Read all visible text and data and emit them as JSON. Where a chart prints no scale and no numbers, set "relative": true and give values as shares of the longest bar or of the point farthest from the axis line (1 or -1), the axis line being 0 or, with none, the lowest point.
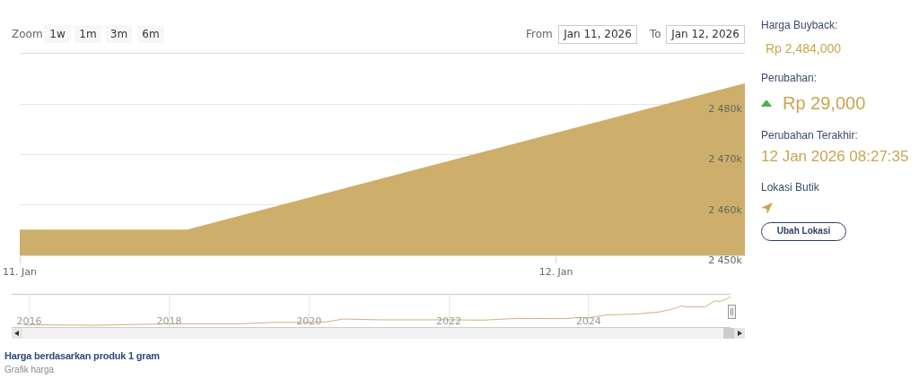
{
  "chart_data": [
    {
      "type": "area",
      "x": [
        "2026-01-11T00:00",
        "2026-01-11T07:30",
        "2026-01-12T08:27"
      ],
      "series": [
        {
          "color": "#cdaf6b",
          "values": [
            2455000,
            2455000,
            2484000
          ]
        }
      ],
      "xlim": [
        "2026-01-11T00:00",
        "2026-01-12T08:27"
      ],
      "xticks": [
        {
          "value": "2026-01-11",
          "label": "11. Jan"
        },
        {
          "value": "2026-01-12",
          "label": "12. Jan"
        }
      ],
      "ylim": [
        2450000,
        2490000
      ],
      "yticks": [
        {
          "value": 2450000,
          "label": "2 450k"
        },
        {
          "value": 2460000,
          "label": "2 460k"
        },
        {
          "value": 2470000,
          "label": "2 470k"
        },
        {
          "value": 2480000,
          "label": "2 480k"
        },
        {
          "value": 2490000,
          "label": null
        }
      ],
      "grid": "y",
      "annotations": [
        "Zoom",
        "1w",
        "1m",
        "3m",
        "6m",
        "From",
        "Jan 11, 2026",
        "To",
        "Jan 12, 2026"
      ]
    },
    {
      "type": "line",
      "relative": true,
      "x": [
        "2015-12",
        "2016-01",
        "2016-12",
        "2018-01",
        "2019-01",
        "2019-07",
        "2019-12",
        "2020-04",
        "2020-07",
        "2021-01",
        "2021-07",
        "2022-01",
        "2022-07",
        "2023-01",
        "2023-09",
        "2023-11",
        "2024-01",
        "2024-04",
        "2024-09",
        "2025-01",
        "2025-03",
        "2025-05",
        "2025-06",
        "2025-09",
        "2025-10-25",
        "2025-11-15",
        "2025-12-20",
        "2026-01-12"
      ],
      "series": [
        {
          "color": "#cfb277",
          "values": [
            0.02,
            0.02,
            0,
            0.05,
            0.05,
            0.1,
            0.1,
            0.12,
            0.22,
            0.19,
            0.19,
            0.19,
            0.18,
            0.24,
            0.23,
            0.27,
            0.26,
            0.36,
            0.39,
            0.46,
            0.54,
            0.67,
            0.64,
            0.64,
            0.86,
            0.82,
            0.91,
            1
          ]
        }
      ],
      "xlim": [
        "2015-10-01",
        "2026-01-12"
      ],
      "xticks": [
        {
          "value": "2016-01-01",
          "label": "2016"
        },
        {
          "value": "2018-01-01",
          "label": "2018"
        },
        {
          "value": "2020-01-01",
          "label": "2020"
        },
        {
          "value": "2022-01-01",
          "label": "2022"
        },
        {
          "value": "2024-01-01",
          "label": "2024"
        }
      ],
      "grid": "x",
      "annotations": [
        "Harga berdasarkan produk 1 gram",
        "Grafik harga"
      ]
    },
    {
      "type": "other",
      "annotations": [
        "Harga Buyback:",
        "Rp 2,484,000",
        "Perubahan:",
        "Rp 29,000",
        "Perubahan Terakhir:",
        "12 Jan 2026 08:27:35",
        "Lokasi Butik",
        "Ubah Lokasi"
      ]
    }
  ]
}
